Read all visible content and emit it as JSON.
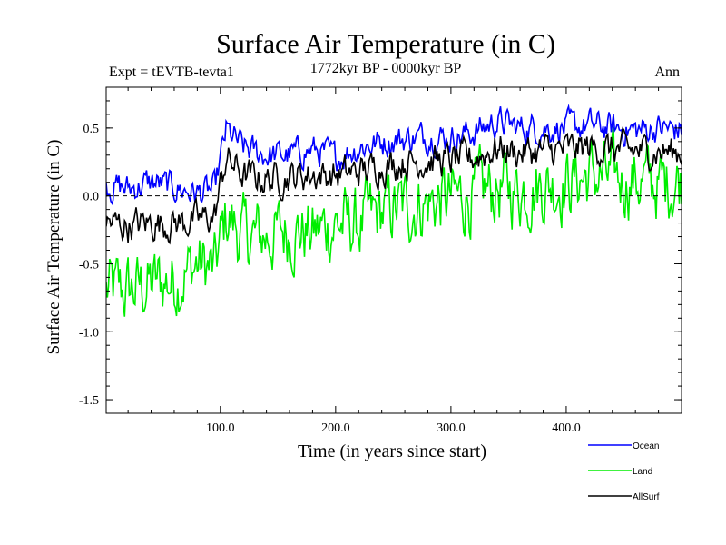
{
  "chart_data": {
    "type": "line",
    "title": "Surface Air Temperature (in C)",
    "subtitle": "1772kyr BP - 0000kyr BP",
    "experiment_label": "Expt = tEVTB-tevta1",
    "period_label": "Ann",
    "xlabel": "Time (in years since start)",
    "ylabel": "Surface Air Temperature (in C)",
    "xlim": [
      1,
      500
    ],
    "ylim": [
      -1.6,
      0.8
    ],
    "x_ticks": [
      100,
      200,
      300,
      400
    ],
    "x_tick_labels": [
      "100.0",
      "200.0",
      "300.0",
      "400.0"
    ],
    "y_ticks": [
      -1.5,
      -1.0,
      -0.5,
      0.0,
      0.5
    ],
    "y_tick_labels": [
      "-1.5",
      "-1.0",
      "-0.5",
      "0.0",
      "0.5"
    ],
    "reference_line": 0.0,
    "series": [
      {
        "name": "Ocean",
        "color": "#0000ff",
        "x": [
          1,
          20,
          40,
          60,
          80,
          95,
          105,
          120,
          140,
          160,
          180,
          200,
          220,
          240,
          260,
          280,
          300,
          320,
          340,
          360,
          380,
          400,
          420,
          440,
          460,
          480,
          500
        ],
        "values": [
          0.08,
          0.05,
          0.1,
          0.06,
          0.02,
          0.04,
          0.48,
          0.35,
          0.3,
          0.3,
          0.34,
          0.28,
          0.36,
          0.4,
          0.42,
          0.44,
          0.43,
          0.47,
          0.55,
          0.5,
          0.5,
          0.5,
          0.52,
          0.5,
          0.48,
          0.5,
          0.48
        ]
      },
      {
        "name": "Land",
        "color": "#00ee00",
        "x": [
          1,
          20,
          40,
          60,
          80,
          95,
          105,
          120,
          140,
          160,
          180,
          200,
          220,
          240,
          260,
          280,
          300,
          320,
          340,
          360,
          380,
          400,
          420,
          440,
          460,
          480,
          500
        ],
        "values": [
          -0.7,
          -0.7,
          -0.65,
          -0.62,
          -0.5,
          -0.55,
          -0.15,
          -0.3,
          -0.3,
          -0.25,
          -0.28,
          -0.2,
          -0.22,
          -0.12,
          -0.08,
          -0.05,
          -0.02,
          0.0,
          0.05,
          0.05,
          0.08,
          0.1,
          0.15,
          0.12,
          0.12,
          0.08,
          0.12
        ]
      },
      {
        "name": "AllSurf",
        "color": "#000000",
        "x": [
          1,
          20,
          40,
          60,
          80,
          95,
          105,
          120,
          140,
          160,
          180,
          200,
          220,
          240,
          260,
          280,
          300,
          320,
          340,
          360,
          380,
          400,
          420,
          440,
          460,
          480,
          500
        ],
        "values": [
          -0.2,
          -0.22,
          -0.2,
          -0.2,
          -0.18,
          -0.15,
          0.28,
          0.15,
          0.12,
          0.14,
          0.16,
          0.15,
          0.18,
          0.22,
          0.25,
          0.26,
          0.26,
          0.28,
          0.35,
          0.32,
          0.33,
          0.34,
          0.36,
          0.34,
          0.33,
          0.33,
          0.32
        ]
      }
    ],
    "legend": [
      {
        "label": "Ocean",
        "color": "#0000ff"
      },
      {
        "label": "Land",
        "color": "#00ee00"
      },
      {
        "label": "AllSurf",
        "color": "#000000"
      }
    ],
    "legend_position": "bottom-right"
  }
}
